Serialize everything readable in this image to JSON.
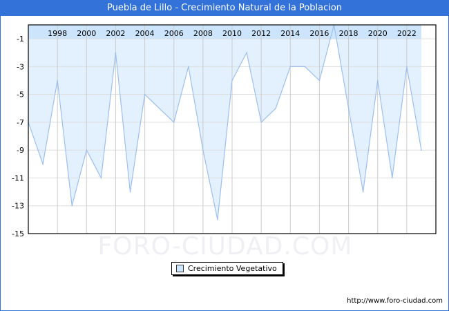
{
  "title": "Puebla de Lillo - Crecimiento Natural de la Poblacion",
  "watermark": "FORO-CIUDAD.COM",
  "url": "http://www.foro-ciudad.com",
  "colors": {
    "fill": "#e3f0fe",
    "band": "#cce5fc",
    "line": "#9cbff0",
    "title_bg": "#3373d9"
  },
  "chart_data": {
    "type": "area",
    "title": "Puebla de Lillo - Crecimiento Natural de la Poblacion",
    "x": [
      1996,
      1997,
      1998,
      1999,
      2000,
      2001,
      2002,
      2003,
      2004,
      2005,
      2006,
      2007,
      2008,
      2009,
      2010,
      2011,
      2012,
      2013,
      2014,
      2015,
      2016,
      2017,
      2018,
      2019,
      2020,
      2021,
      2022,
      2023
    ],
    "series": [
      {
        "name": "Crecimiento Vegetativo",
        "values": [
          -7,
          -10,
          -4,
          -13,
          -9,
          -11,
          -2,
          -12,
          -5,
          -6,
          -7,
          -3,
          -9,
          -14,
          -4,
          -2,
          -7,
          -6,
          -3,
          -3,
          -4,
          0,
          -6,
          -12,
          -4,
          -11,
          -3,
          -9
        ]
      }
    ],
    "xticks": [
      "1998",
      "2000",
      "2002",
      "2004",
      "2006",
      "2008",
      "2010",
      "2012",
      "2014",
      "2016",
      "2018",
      "2020",
      "2022"
    ],
    "yticks": [
      "-1",
      "-3",
      "-5",
      "-7",
      "-9",
      "-11",
      "-13",
      "-15"
    ],
    "ylim": [
      -15,
      0
    ],
    "xlim": [
      1996,
      2024
    ],
    "grid": true,
    "legend": "bottom-center"
  }
}
